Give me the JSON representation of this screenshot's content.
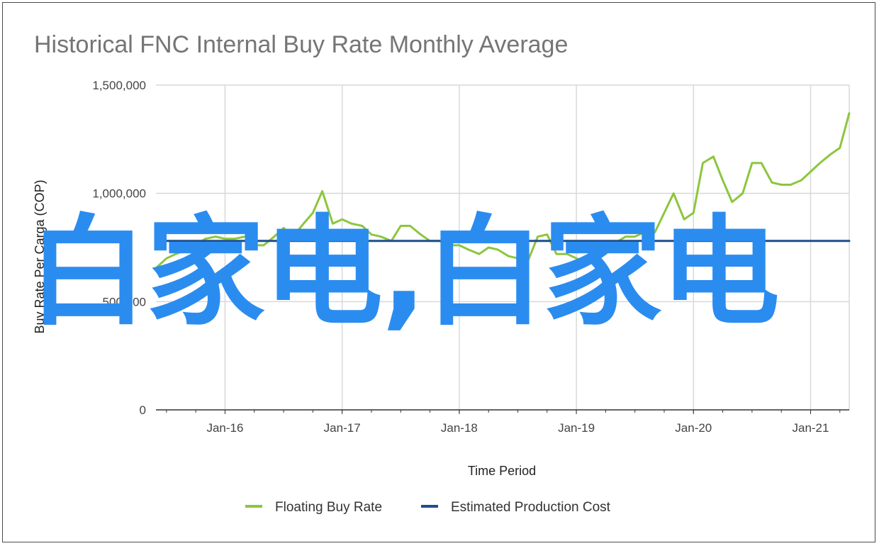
{
  "colors": {
    "floating": "#8cc63e",
    "production": "#1f4e8c",
    "grid": "#d9d9d9",
    "axis": "#333333",
    "watermark": "#2b8cf0"
  },
  "watermark": {
    "text": "白家电,白家电"
  },
  "chart_data": {
    "type": "line",
    "title": "Historical FNC Internal Buy Rate Monthly Average",
    "xlabel": "Time Period",
    "ylabel": "Buy Rate Per Carga (COP)",
    "x_tick_labels": [
      "Jan-16",
      "Jan-17",
      "Jan-18",
      "Jan-19",
      "Jan-20",
      "Jan-21"
    ],
    "x_tick_positions": [
      2016.0,
      2017.0,
      2018.0,
      2019.0,
      2020.0,
      2021.0
    ],
    "xlim": [
      2015.41,
      2021.33
    ],
    "y_tick_labels": [
      "0",
      "500,000",
      "1,000,000",
      "1,500,000"
    ],
    "y_ticks": [
      0,
      500000,
      1000000,
      1500000
    ],
    "ylim": [
      0,
      1500000
    ],
    "grid": true,
    "legend_position": "bottom",
    "series": [
      {
        "name": "Floating Buy Rate",
        "x": [
          2015.42,
          2015.5,
          2015.58,
          2015.67,
          2015.75,
          2015.83,
          2015.92,
          2016.0,
          2016.08,
          2016.17,
          2016.25,
          2016.33,
          2016.42,
          2016.5,
          2016.58,
          2016.67,
          2016.75,
          2016.83,
          2016.92,
          2017.0,
          2017.08,
          2017.17,
          2017.25,
          2017.33,
          2017.42,
          2017.5,
          2017.58,
          2017.67,
          2017.75,
          2017.83,
          2017.92,
          2018.0,
          2018.08,
          2018.17,
          2018.25,
          2018.33,
          2018.42,
          2018.5,
          2018.58,
          2018.67,
          2018.75,
          2018.83,
          2018.92,
          2019.0,
          2019.08,
          2019.17,
          2019.25,
          2019.33,
          2019.42,
          2019.5,
          2019.58,
          2019.67,
          2019.75,
          2019.83,
          2019.92,
          2020.0,
          2020.08,
          2020.17,
          2020.25,
          2020.33,
          2020.42,
          2020.5,
          2020.58,
          2020.67,
          2020.75,
          2020.83,
          2020.92,
          2021.0,
          2021.08,
          2021.17,
          2021.25,
          2021.33
        ],
        "values": [
          660000,
          700000,
          720000,
          740000,
          760000,
          790000,
          800000,
          790000,
          790000,
          800000,
          760000,
          760000,
          800000,
          840000,
          800000,
          860000,
          910000,
          1010000,
          860000,
          880000,
          860000,
          850000,
          810000,
          800000,
          780000,
          850000,
          850000,
          810000,
          780000,
          780000,
          760000,
          760000,
          740000,
          720000,
          750000,
          740000,
          710000,
          700000,
          680000,
          800000,
          810000,
          720000,
          720000,
          700000,
          680000,
          700000,
          720000,
          770000,
          800000,
          800000,
          820000,
          820000,
          910000,
          1000000,
          880000,
          910000,
          1140000,
          1170000,
          1060000,
          960000,
          1000000,
          1140000,
          1140000,
          1050000,
          1040000,
          1040000,
          1060000,
          1100000,
          1140000,
          1180000,
          1210000,
          1370000
        ]
      },
      {
        "name": "Estimated Production Cost",
        "x": [
          2015.41,
          2021.33
        ],
        "values": [
          780000,
          780000
        ]
      }
    ]
  }
}
